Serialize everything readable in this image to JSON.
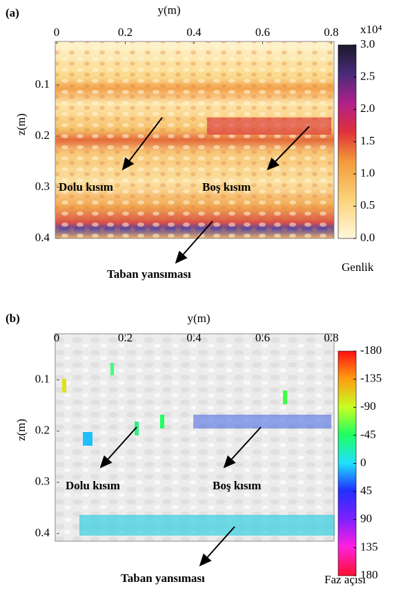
{
  "chart_data": [
    {
      "type": "heatmap",
      "panel_label": "(a)",
      "xlabel": "y(m)",
      "ylabel": "z(m)",
      "xlim": [
        0,
        0.8
      ],
      "xticks": [
        0,
        0.2,
        0.4,
        0.6,
        0.8
      ],
      "ylim": [
        0.015,
        0.4
      ],
      "yticks": [
        0.1,
        0.2,
        0.3,
        0.4
      ],
      "colorbar": {
        "label": "Genlik",
        "unit": "x10⁴",
        "lim": [
          0,
          3
        ],
        "ticks": [
          {
            "value": 0,
            "label": "0.0"
          },
          0.5,
          {
            "value": 1,
            "label": "1.0"
          },
          1.5,
          {
            "value": 2,
            "label": "2.0"
          },
          2.5,
          {
            "value": 3,
            "label": "3.0"
          }
        ]
      },
      "annotations": [
        "Dolu kısım",
        "Boş kısım",
        "Taban yansıması"
      ]
    },
    {
      "type": "heatmap",
      "panel_label": "(b)",
      "xlabel": "y(m)",
      "ylabel": "z(m)",
      "xlim": [
        0,
        0.8
      ],
      "xticks": [
        0,
        0.2,
        0.4,
        0.6,
        0.8
      ],
      "ylim": [
        0.01,
        0.415
      ],
      "yticks": [
        0.1,
        0.2,
        0.3,
        0.4
      ],
      "colorbar": {
        "label": "Faz açısı",
        "lim": [
          -180,
          180
        ],
        "ticks": [
          -180,
          -135,
          -90,
          -45,
          0,
          45,
          90,
          135,
          180
        ]
      },
      "annotations": [
        "Dolu kısım",
        "Boş kısım",
        "Taban yansıması"
      ]
    }
  ]
}
